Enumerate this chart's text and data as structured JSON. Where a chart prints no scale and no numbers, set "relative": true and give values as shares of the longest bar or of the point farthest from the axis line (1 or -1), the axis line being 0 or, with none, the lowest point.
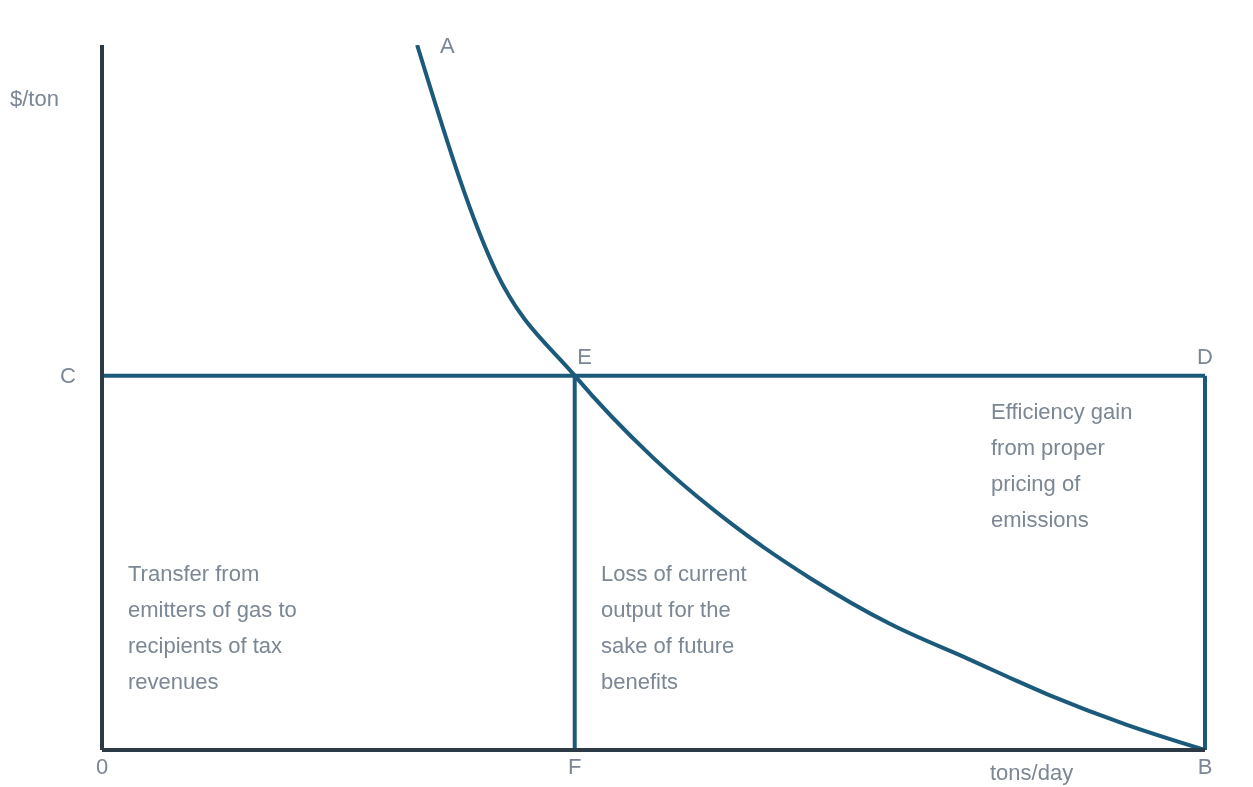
{
  "chart_data": {
    "type": "line",
    "relative": true,
    "xlabel": "tons/day",
    "ylabel": "$/ton",
    "categories": [
      "0",
      null,
      null,
      null,
      null,
      null,
      "F",
      null,
      null,
      null,
      null,
      null,
      null,
      null,
      "B"
    ],
    "marker": "none",
    "grid": false,
    "legend": false,
    "series": [
      {
        "color": "#1b5a7a",
        "values": [
          null,
          null,
          null,
          null,
          1,
          0.679,
          0.531,
          0.414,
          0.32,
          0.243,
          0.179,
          0.129,
          0.079,
          0.036,
          0
        ]
      }
    ],
    "ref_lines": [
      {
        "axis": "y",
        "value": 0.531,
        "label": "C",
        "color": "#1b5a7a"
      },
      {
        "axis": "x",
        "value": "F",
        "color": "#1b5a7a"
      },
      {
        "axis": "x",
        "value": "B",
        "color": "#1b5a7a"
      }
    ],
    "annotations": [
      "A",
      {
        "text": "E",
        "x": "F",
        "y": 0.531
      },
      {
        "text": "D",
        "x": "B",
        "y": 0.531
      },
      "Transfer from emitters of gas to recipients of tax revenues",
      "Loss of current output for the sake of future benefits",
      "Efficiency gain from proper pricing of emissions"
    ]
  }
}
